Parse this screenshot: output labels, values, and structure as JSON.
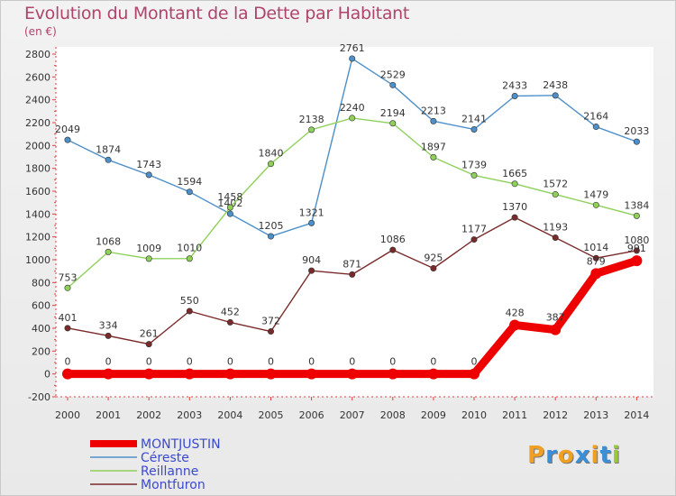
{
  "header": {
    "title": "Evolution du Montant de la Dette par Habitant",
    "unit": "(en €)"
  },
  "logo": {
    "text": "Proxiti",
    "letters": [
      {
        "ch": "P",
        "color": "#f0a020"
      },
      {
        "ch": "r",
        "color": "#3a8fd8"
      },
      {
        "ch": "o",
        "color": "#f0a020"
      },
      {
        "ch": "x",
        "color": "#3a8fd8"
      },
      {
        "ch": "i",
        "color": "#f0a020"
      },
      {
        "ch": "t",
        "color": "#3a8fd8"
      },
      {
        "ch": "i",
        "color": "#9ac83a"
      }
    ]
  },
  "chart_data": {
    "type": "line",
    "title": "Evolution du Montant de la Dette par Habitant",
    "ylabel": "(en €)",
    "x": [
      "2000",
      "2001",
      "2002",
      "2003",
      "2004",
      "2005",
      "2006",
      "2007",
      "2008",
      "2009",
      "2010",
      "2011",
      "2012",
      "2013",
      "2014"
    ],
    "ylim": [
      -200,
      2800
    ],
    "yticks": [
      -200,
      0,
      200,
      400,
      600,
      800,
      1000,
      1200,
      1400,
      1600,
      1800,
      2000,
      2200,
      2400,
      2600,
      2800
    ],
    "grid": false,
    "legend_position": "bottom-left",
    "series": [
      {
        "name": "MONTJUSTIN",
        "color": "#ee0000",
        "values": [
          0,
          0,
          0,
          0,
          0,
          0,
          0,
          0,
          0,
          0,
          0,
          428,
          387,
          879,
          991
        ],
        "labels": [
          "0",
          "0",
          "0",
          "0",
          "0",
          "0",
          "0",
          "0",
          "0",
          "0",
          "0",
          "428",
          "387",
          "879",
          "991"
        ],
        "emphasis": true
      },
      {
        "name": "Céreste",
        "color": "#4d8fc9",
        "values": [
          2049,
          1874,
          1743,
          1594,
          1402,
          1205,
          1321,
          2761,
          2529,
          2213,
          2141,
          2433,
          2438,
          2164,
          2033
        ],
        "labels": [
          "2049",
          "1874",
          "1743",
          "1594",
          "1402",
          "1205",
          "1321",
          "2761",
          "2529",
          "2213",
          "2141",
          "2433",
          "2438",
          "2164",
          "2033"
        ]
      },
      {
        "name": "Reillanne",
        "color": "#8fd05a",
        "values": [
          753,
          1068,
          1009,
          1010,
          1458,
          1840,
          2138,
          2240,
          2194,
          1897,
          1739,
          1665,
          1572,
          1479,
          1384
        ],
        "labels": [
          "753",
          "1068",
          "1009",
          "1010",
          "1458",
          "1840",
          "2138",
          "2240",
          "2194",
          "1897",
          "1739",
          "1665",
          "1572",
          "1479",
          "1384"
        ]
      },
      {
        "name": "Montfuron",
        "color": "#7a2a2a",
        "values": [
          401,
          334,
          261,
          550,
          452,
          372,
          904,
          871,
          1086,
          925,
          1177,
          1370,
          1193,
          1014,
          1080
        ],
        "labels": [
          "401",
          "334",
          "261",
          "550",
          "452",
          "372",
          "904",
          "871",
          "1086",
          "925",
          "1177",
          "1370",
          "1193",
          "1014",
          "1080"
        ]
      }
    ]
  }
}
